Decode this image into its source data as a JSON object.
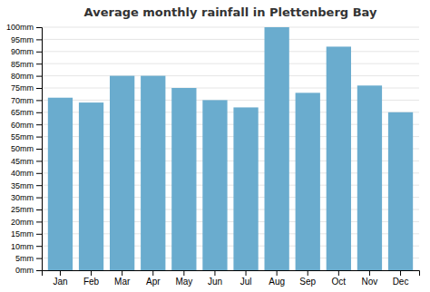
{
  "chart_data": {
    "type": "bar",
    "title": "Average monthly rainfall in Plettenberg Bay",
    "categories": [
      "Jan",
      "Feb",
      "Mar",
      "Apr",
      "May",
      "Jun",
      "Jul",
      "Aug",
      "Sep",
      "Oct",
      "Nov",
      "Dec"
    ],
    "values": [
      71,
      69,
      80,
      80,
      75,
      70,
      67,
      100,
      73,
      92,
      76,
      65
    ],
    "color": "#6aacce",
    "ylim": [
      0,
      100
    ],
    "yticks": [
      {
        "value": 0,
        "label": "0mm"
      },
      {
        "value": 5,
        "label": "5mm"
      },
      {
        "value": 10,
        "label": "10mm"
      },
      {
        "value": 15,
        "label": "15mm"
      },
      {
        "value": 20,
        "label": "20mm"
      },
      {
        "value": 25,
        "label": "25mm"
      },
      {
        "value": 30,
        "label": "30mm"
      },
      {
        "value": 35,
        "label": "35mm"
      },
      {
        "value": 40,
        "label": "40mm"
      },
      {
        "value": 45,
        "label": "45mm"
      },
      {
        "value": 50,
        "label": "50mm"
      },
      {
        "value": 55,
        "label": "55mm"
      },
      {
        "value": 60,
        "label": "60mm"
      },
      {
        "value": 65,
        "label": "65mm"
      },
      {
        "value": 70,
        "label": "70mm"
      },
      {
        "value": 75,
        "label": "75mm"
      },
      {
        "value": 80,
        "label": "80mm"
      },
      {
        "value": 85,
        "label": "85mm"
      },
      {
        "value": 90,
        "label": "90mm"
      },
      {
        "value": 95,
        "label": "95mm"
      },
      {
        "value": 100,
        "label": "100mm"
      }
    ],
    "grid": true
  }
}
